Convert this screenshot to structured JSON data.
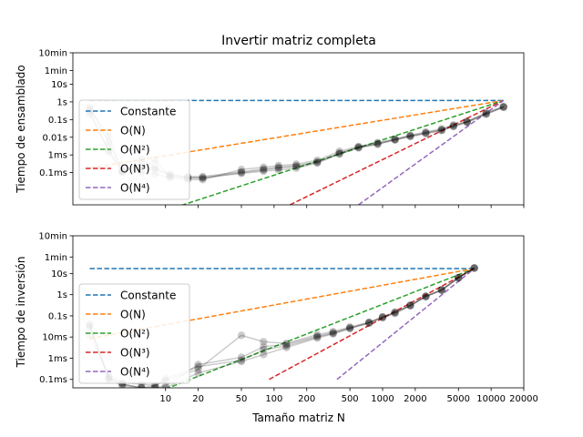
{
  "chart_data": {
    "type": "line",
    "title": "Invertir matriz completa",
    "xlabel": "Tamaño matriz N",
    "x_scale": "log",
    "xlim": [
      1.4,
      20000
    ],
    "xticks": [
      {
        "value": 10,
        "label": "10"
      },
      {
        "value": 20,
        "label": "20"
      },
      {
        "value": 50,
        "label": "50"
      },
      {
        "value": 100,
        "label": "100"
      },
      {
        "value": 200,
        "label": "200"
      },
      {
        "value": 500,
        "label": "500"
      },
      {
        "value": 1000,
        "label": "1000"
      },
      {
        "value": 2000,
        "label": "2000"
      },
      {
        "value": 5000,
        "label": "5000"
      },
      {
        "value": 10000,
        "label": "10000"
      },
      {
        "value": 20000,
        "label": "20000"
      }
    ],
    "legend_position": "left",
    "legend": [
      {
        "name": "Constante",
        "color": "#1f77b4"
      },
      {
        "name": "O(N)",
        "color": "#ff7f0e"
      },
      {
        "name": "O(N²)",
        "color": "#2ca02c"
      },
      {
        "name": "O(N³)",
        "color": "#d62728"
      },
      {
        "name": "O(N⁴)",
        "color": "#9467bd"
      }
    ],
    "subplots": [
      {
        "ylabel": "Tiempo de ensamblado",
        "y_scale": "log",
        "ylim": [
          1.5e-06,
          600
        ],
        "yticks": [
          {
            "value": 0.0001,
            "label": "0.1ms"
          },
          {
            "value": 0.001,
            "label": "1ms"
          },
          {
            "value": 0.01,
            "label": "0.01s"
          },
          {
            "value": 0.1,
            "label": "0.1s"
          },
          {
            "value": 1,
            "label": "1s"
          },
          {
            "value": 10,
            "label": "10s"
          },
          {
            "value": 60,
            "label": "1min"
          },
          {
            "value": 600,
            "label": "10min"
          }
        ],
        "reference_lines": [
          {
            "name": "Constante",
            "color": "#1f77b4",
            "x": [
              2,
              13000
            ],
            "y": [
              1.2,
              1.2
            ]
          },
          {
            "name": "O(N)",
            "color": "#ff7f0e",
            "x": [
              2,
              13000
            ],
            "y": [
              0.00018,
              1.2
            ]
          },
          {
            "name": "O(N²)",
            "color": "#2ca02c",
            "x": [
              14,
              13000
            ],
            "y": [
              1.4e-06,
              1.2
            ]
          },
          {
            "name": "O(N³)",
            "color": "#d62728",
            "x": [
              140,
              13000
            ],
            "y": [
              1.5e-06,
              1.2
            ]
          },
          {
            "name": "O(N⁴)",
            "color": "#9467bd",
            "x": [
              600,
              13000
            ],
            "y": [
              1.5e-06,
              1.2
            ]
          }
        ],
        "runs": [
          {
            "x": [
              2,
              3,
              4,
              6,
              8,
              11,
              16,
              22,
              50,
              80,
              110,
              160,
              250,
              400,
              600,
              900,
              1300,
              1800,
              2500,
              3500,
              4500,
              6000,
              9000,
              13000
            ],
            "y": [
              0.4,
              0.012,
              0.00012,
              0.00015,
              0.0005,
              6e-05,
              5e-05,
              5e-05,
              9e-05,
              0.00012,
              0.00014,
              0.00018,
              0.00035,
              0.0011,
              0.0025,
              0.004,
              0.007,
              0.011,
              0.016,
              0.024,
              0.04,
              0.07,
              0.2,
              0.5
            ]
          },
          {
            "x": [
              2,
              3,
              4,
              6,
              8,
              11,
              16,
              22,
              50,
              80,
              110,
              160,
              250,
              400,
              600,
              900,
              1300,
              1800,
              2500,
              3500,
              4500,
              6000,
              9000,
              13000
            ],
            "y": [
              0.3,
              0.0015,
              0.0001,
              0.0001,
              8e-05,
              5e-05,
              4e-05,
              4e-05,
              0.00015,
              0.0002,
              0.00025,
              0.0003,
              0.0005,
              0.0016,
              0.003,
              0.005,
              0.008,
              0.013,
              0.02,
              0.03,
              0.05,
              0.08,
              0.25,
              0.55
            ]
          },
          {
            "x": [
              2,
              3,
              4,
              6,
              8,
              11,
              16,
              22,
              50,
              80,
              110,
              160,
              250,
              400,
              600,
              900,
              1300,
              1800,
              2500,
              3500,
              4500,
              6000,
              9000,
              13000
            ],
            "y": [
              0.5,
              0.005,
              0.00013,
              0.0006,
              0.0002,
              7e-05,
              6e-05,
              6e-05,
              0.00011,
              0.00016,
              0.0002,
              0.00025,
              0.0004,
              0.0013,
              0.0028,
              0.0045,
              0.0075,
              0.012,
              0.018,
              0.027,
              0.045,
              0.075,
              0.22,
              0.52
            ]
          },
          {
            "x": [
              2,
              3,
              4,
              6,
              8,
              11,
              16,
              22,
              50,
              80,
              110,
              160,
              250,
              400,
              600,
              900,
              1300,
              1800,
              2500,
              3500,
              4500,
              6000,
              9000,
              13000
            ],
            "y": [
              0.2,
              0.002,
              0.00011,
              0.0003,
              0.00015,
              8e-05,
              5e-05,
              5e-05,
              0.0001,
              0.00014,
              0.00018,
              0.00022,
              0.00038,
              0.0012,
              0.0026,
              0.0042,
              0.0072,
              0.0115,
              0.017,
              0.025,
              0.042,
              0.072,
              0.21,
              0.51
            ]
          }
        ]
      },
      {
        "ylabel": "Tiempo de inversión",
        "y_scale": "log",
        "ylim": [
          4e-05,
          600
        ],
        "yticks": [
          {
            "value": 0.0001,
            "label": "0.1ms"
          },
          {
            "value": 0.001,
            "label": "1ms"
          },
          {
            "value": 0.01,
            "label": "10ms"
          },
          {
            "value": 0.1,
            "label": "0.1s"
          },
          {
            "value": 1,
            "label": "1s"
          },
          {
            "value": 10,
            "label": "10s"
          },
          {
            "value": 60,
            "label": "1min"
          },
          {
            "value": 600,
            "label": "10min"
          }
        ],
        "reference_lines": [
          {
            "name": "Constante",
            "color": "#1f77b4",
            "x": [
              2,
              7000
            ],
            "y": [
              17,
              17
            ]
          },
          {
            "name": "O(N)",
            "color": "#ff7f0e",
            "x": [
              2,
              7000
            ],
            "y": [
              0.0085,
              17
            ]
          },
          {
            "name": "O(N²)",
            "color": "#2ca02c",
            "x": [
              10,
              7000
            ],
            "y": [
              3.5e-05,
              17
            ]
          },
          {
            "name": "O(N³)",
            "color": "#d62728",
            "x": [
              90,
              7000
            ],
            "y": [
              0.0001,
              17
            ]
          },
          {
            "name": "O(N⁴)",
            "color": "#9467bd",
            "x": [
              380,
              7000
            ],
            "y": [
              0.0001,
              17
            ]
          }
        ],
        "runs": [
          {
            "x": [
              2,
              3,
              4,
              6,
              8,
              10,
              20,
              50,
              80,
              130,
              250,
              350,
              500,
              750,
              1000,
              1300,
              1800,
              2500,
              3500,
              5000,
              7000
            ],
            "y": [
              0.04,
              0.00012,
              6e-05,
              4e-05,
              4e-05,
              4e-05,
              0.0002,
              0.0007,
              0.0015,
              0.0032,
              0.009,
              0.014,
              0.025,
              0.045,
              0.08,
              0.13,
              0.3,
              0.8,
              1.6,
              6,
              18
            ]
          },
          {
            "x": [
              2,
              3,
              4,
              6,
              8,
              10,
              20,
              50,
              80,
              130,
              250,
              350,
              500,
              750,
              1000,
              1300,
              1800,
              2500,
              3500,
              5000,
              7000
            ],
            "y": [
              0.012,
              0.00015,
              7e-05,
              6e-05,
              5e-05,
              9e-05,
              0.0003,
              0.012,
              0.006,
              0.005,
              0.013,
              0.018,
              0.03,
              0.05,
              0.09,
              0.15,
              0.32,
              0.85,
              1.7,
              6.5,
              18
            ]
          },
          {
            "x": [
              2,
              3,
              4,
              6,
              8,
              10,
              20,
              50,
              80,
              130,
              250,
              350,
              500,
              750,
              1000,
              1300,
              1800,
              2500,
              3500,
              5000,
              7000
            ],
            "y": [
              0.03,
              0.0001,
              5e-05,
              4e-05,
              5e-05,
              0.00011,
              0.0004,
              0.0008,
              0.0025,
              0.0038,
              0.01,
              0.015,
              0.026,
              0.047,
              0.085,
              0.14,
              0.31,
              0.82,
              1.65,
              6.2,
              18
            ]
          },
          {
            "x": [
              2,
              3,
              4,
              6,
              8,
              10,
              20,
              50,
              80,
              130,
              250,
              350,
              500,
              750,
              1000,
              1300,
              1800,
              2500,
              3500,
              5000,
              7000
            ],
            "y": [
              0.035,
              0.00011,
              6e-05,
              4e-05,
              4e-05,
              5e-05,
              0.0005,
              0.0011,
              0.0035,
              0.0045,
              0.011,
              0.016,
              0.027,
              0.048,
              0.088,
              0.145,
              0.305,
              0.83,
              1.68,
              6.3,
              18
            ]
          }
        ]
      }
    ]
  }
}
